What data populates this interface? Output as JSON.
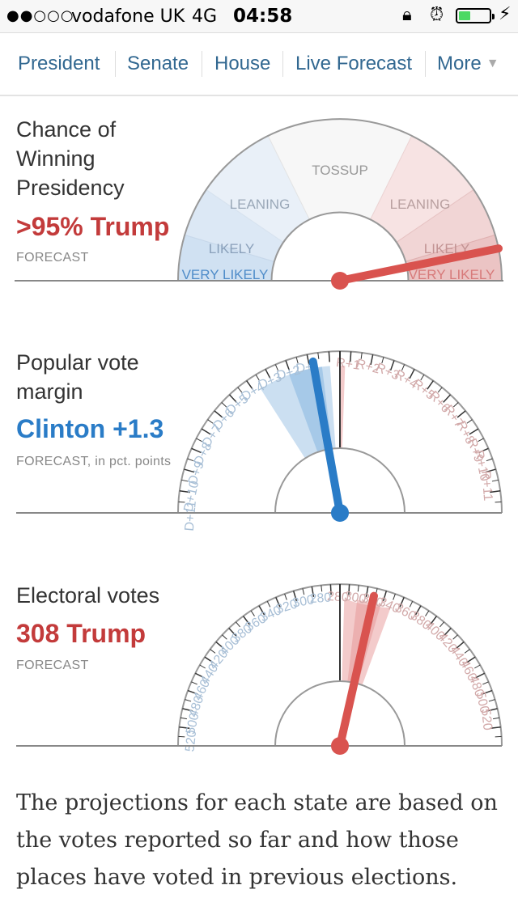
{
  "status_bar": {
    "signal": "●●○○○",
    "carrier": "vodafone UK",
    "network": "4G",
    "time": "04:58",
    "battery_level": 0.4,
    "icons": [
      "orientation-lock-icon",
      "alarm-icon",
      "battery-icon",
      "charging-icon"
    ]
  },
  "nav": {
    "items": [
      "President",
      "Senate",
      "House",
      "Live Forecast",
      "More"
    ],
    "more_icon": "dropdown-triangle-icon"
  },
  "presidency": {
    "title_lines": [
      "Chance of",
      "Winning",
      "Presidency"
    ],
    "headline": ">95% Trump",
    "sublabel": "FORECAST",
    "labels": {
      "tossup": "TOSSUP",
      "leaning_left": "LEANING",
      "leaning_right": "LEANING",
      "likely_left": "LIKELY",
      "likely_right": "LIKELY",
      "very_likely_left": "VERY LIKELY",
      "very_likely_right": "VERY LIKELY"
    },
    "trump_chance_percent": 95
  },
  "popular_vote": {
    "title_lines": [
      "Popular vote",
      "margin"
    ],
    "headline": "Clinton +1.3",
    "sublabel": "FORECAST, in pct. points",
    "left_ticks": [
      "D+1",
      "D+2",
      "D+3",
      "D+4",
      "D+5",
      "D+6",
      "D+7",
      "D+8",
      "D+9",
      "D+10",
      "D+11"
    ],
    "right_ticks": [
      "R+1",
      "R+2",
      "R+3",
      "R+4",
      "R+5",
      "R+6",
      "R+7",
      "R+8",
      "R+9",
      "R+10",
      "R+11"
    ],
    "margin_d": 1.3
  },
  "electoral": {
    "title_lines": [
      "Electoral votes"
    ],
    "headline": "308 Trump",
    "sublabel": "FORECAST",
    "left_ticks": [
      "280",
      "300",
      "320",
      "340",
      "360",
      "380",
      "400",
      "420",
      "440",
      "460",
      "480",
      "500",
      "520"
    ],
    "right_ticks": [
      "280",
      "300",
      "320",
      "340",
      "360",
      "380",
      "400",
      "420",
      "440",
      "460",
      "480",
      "500",
      "520"
    ],
    "trump_votes": 308
  },
  "colors": {
    "nav_link": "#326891",
    "republican": "#d9534f",
    "democrat": "#2a7cc7"
  },
  "footer": {
    "text": "The projections for each state are based on the votes reported so far and how those places have voted in previous elections."
  }
}
